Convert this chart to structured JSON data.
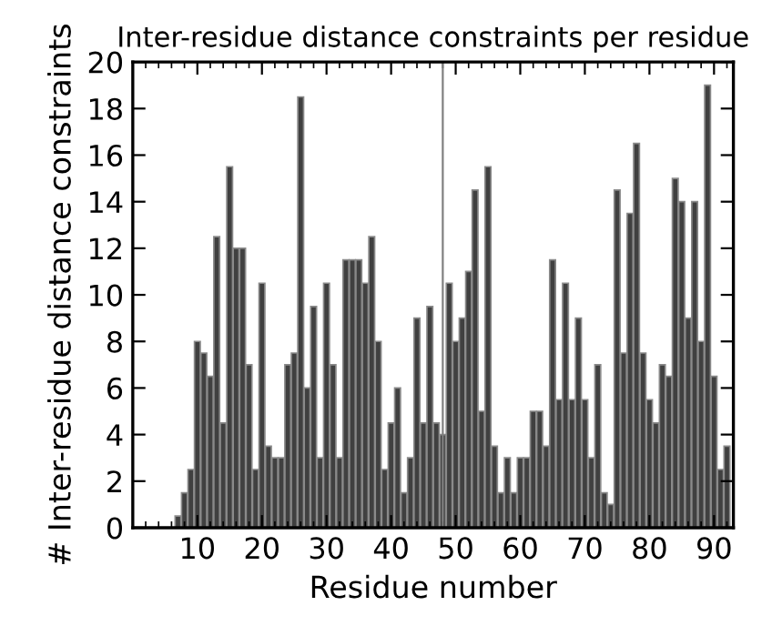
{
  "chart_data": {
    "type": "bar",
    "title": "Inter-residue distance constraints per residue",
    "xlabel": "Residue number",
    "ylabel": "# Inter-residue distance constraints",
    "x": [
      7,
      8,
      9,
      10,
      11,
      12,
      13,
      14,
      15,
      16,
      17,
      18,
      19,
      20,
      21,
      22,
      23,
      24,
      25,
      26,
      27,
      28,
      29,
      30,
      31,
      32,
      33,
      34,
      35,
      36,
      37,
      38,
      39,
      40,
      41,
      42,
      43,
      44,
      45,
      46,
      47,
      48,
      49,
      50,
      51,
      52,
      53,
      54,
      55,
      56,
      57,
      58,
      59,
      60,
      61,
      62,
      63,
      64,
      65,
      66,
      67,
      68,
      69,
      70,
      71,
      72,
      73,
      74,
      75,
      76,
      77,
      78,
      79,
      80,
      81,
      82,
      83,
      84,
      85,
      86,
      87,
      88,
      89,
      90,
      91,
      92
    ],
    "values": [
      0.5,
      1.5,
      2.5,
      8,
      7.5,
      6.5,
      12.5,
      4.5,
      15.5,
      12,
      12,
      7,
      2.5,
      10.5,
      3.5,
      3,
      3,
      7,
      7.5,
      18.5,
      6,
      9.5,
      3,
      10.5,
      7,
      3,
      11.5,
      11.5,
      11.5,
      10.5,
      12.5,
      8,
      2.5,
      4.5,
      6,
      1.5,
      3,
      9,
      4.5,
      9.5,
      4.5,
      4,
      10.5,
      8,
      9,
      11,
      14.5,
      5,
      15.5,
      3.5,
      1.5,
      3,
      1.5,
      3,
      3,
      5,
      5,
      3.5,
      11.5,
      5.5,
      10.5,
      5.5,
      9,
      5.5,
      3,
      7,
      1.5,
      1,
      14.5,
      7.5,
      13.5,
      16.5,
      7.5,
      5.5,
      4.5,
      7,
      6.5,
      15,
      14,
      9,
      14,
      8,
      19,
      6.5,
      2.5,
      3.5
    ],
    "color": "#404040",
    "xlim": [
      0,
      93
    ],
    "xticks": [
      10,
      20,
      30,
      40,
      50,
      60,
      70,
      80,
      90
    ],
    "ylim": [
      0,
      20
    ],
    "yticks": [
      0,
      2,
      4,
      6,
      8,
      10,
      12,
      14,
      16,
      18,
      20
    ],
    "ref_lines": [
      {
        "axis": "x",
        "value": 48,
        "color": "#808080"
      }
    ],
    "grid": false,
    "legend": false
  }
}
